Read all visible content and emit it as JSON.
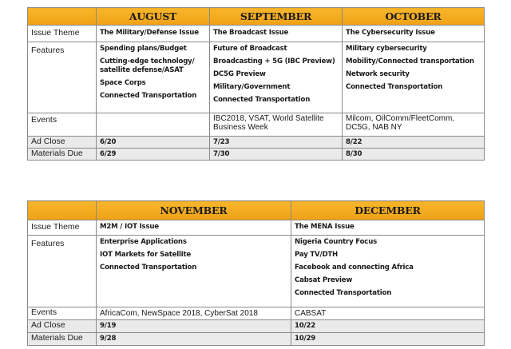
{
  "table1": {
    "months": [
      "AUGUST",
      "SEPTEMBER",
      "OCTOBER"
    ],
    "labels": {
      "issue_theme": "Issue Theme",
      "features": "Features",
      "events": "Events",
      "ad_close": "Ad Close",
      "materials_due": "Materials Due"
    },
    "issue_theme": [
      "The Military/Defense Issue",
      "The Broadcast Issue",
      "The Cybersecurity Issue"
    ],
    "features": [
      [
        "Spending plans/Budget",
        "Cutting-edge technology/ satellite defense/ASAT",
        "Space Corps",
        "Connected Transportation"
      ],
      [
        "Future of Broadcast",
        "Broadcasting + 5G (IBC Preview)",
        "DC5G Preview",
        "Military/Government",
        "Connected Transportation"
      ],
      [
        "Military cybersecurity",
        "Mobility/Connected transportation",
        "Network security",
        "Connected Transportation"
      ]
    ],
    "events": [
      "",
      "IBC2018, VSAT, World Satellite Business Week",
      "Milcom, OilComm/FleetComm, DC5G, NAB NY"
    ],
    "ad_close": [
      "6/20",
      "7/23",
      "8/22"
    ],
    "materials_due": [
      "6/29",
      "7/30",
      "8/30"
    ]
  },
  "table2": {
    "months": [
      "NOVEMBER",
      "DECEMBER"
    ],
    "labels": {
      "issue_theme": "Issue Theme",
      "features": "Features",
      "events": "Events",
      "ad_close": "Ad Close",
      "materials_due": "Materials Due"
    },
    "issue_theme": [
      "M2M / IOT Issue",
      "The MENA Issue"
    ],
    "features": [
      [
        "Enterprise Applications",
        "IOT Markets for Satellite",
        "Connected Transportation"
      ],
      [
        "Nigeria Country Focus",
        "Pay TV/DTH",
        "Facebook and connecting Africa",
        "Cabsat Preview",
        "Connected Transportation"
      ]
    ],
    "events": [
      "AfricaCom, NewSpace 2018, CyberSat 2018",
      "CABSAT"
    ],
    "ad_close": [
      "9/19",
      "10/22"
    ],
    "materials_due": [
      "9/28",
      "10/29"
    ]
  },
  "colors": {
    "header": "#f0a114",
    "gray_row": "#eaeaea",
    "border": "#8a8a8a"
  }
}
